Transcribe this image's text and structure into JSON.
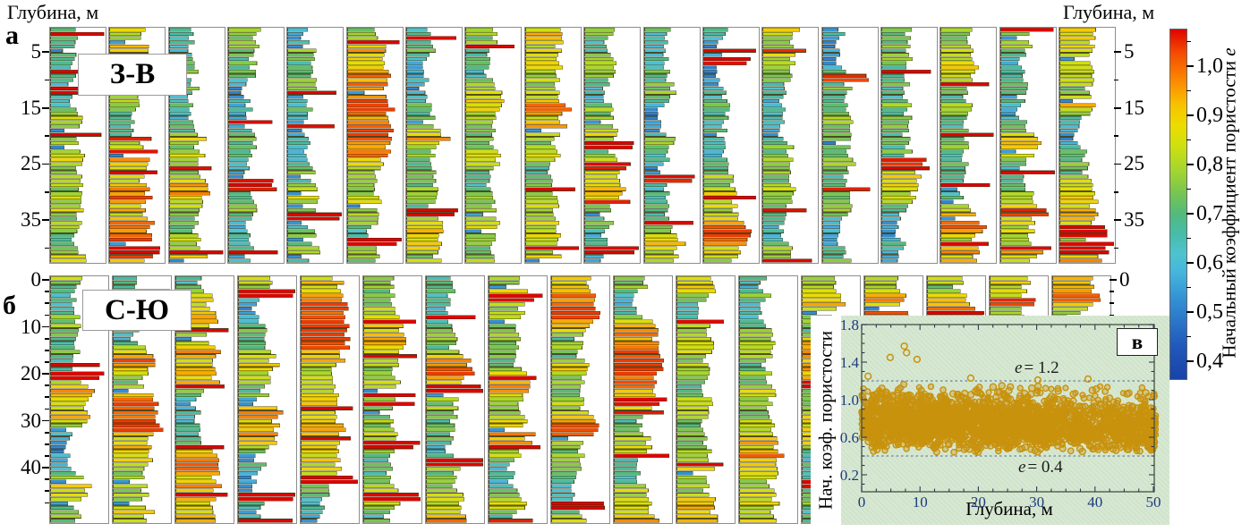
{
  "figure": {
    "depth_axis_title_left": "Глубина, м",
    "depth_axis_title_right": "Глубина, м",
    "label_a": "а",
    "label_b": "б"
  },
  "colorbar": {
    "label": "Начальный коэффициент пористости",
    "label_symbol": "e",
    "tick_labels": [
      "1,0",
      "0,9",
      "0,8",
      "0,7",
      "0,6",
      "0,5",
      "0,4"
    ],
    "tick_values": [
      1.0,
      0.9,
      0.8,
      0.7,
      0.6,
      0.5,
      0.4
    ],
    "minor_tick_values": [
      1.05,
      0.95,
      0.85,
      0.75,
      0.65,
      0.55,
      0.45
    ],
    "domain": [
      0.365,
      1.076
    ],
    "stops": [
      [
        1.076,
        "#df0400"
      ],
      [
        1.03,
        "#f44a00"
      ],
      [
        0.97,
        "#fb8c00"
      ],
      [
        0.92,
        "#f7c400"
      ],
      [
        0.88,
        "#ecdc00"
      ],
      [
        0.84,
        "#cfe00f"
      ],
      [
        0.79,
        "#a4d62e"
      ],
      [
        0.74,
        "#74c455"
      ],
      [
        0.7,
        "#52ba7e"
      ],
      [
        0.66,
        "#47bcaa"
      ],
      [
        0.62,
        "#4fc3cf"
      ],
      [
        0.58,
        "#45b4dd"
      ],
      [
        0.53,
        "#3492d5"
      ],
      [
        0.48,
        "#2b74c8"
      ],
      [
        0.43,
        "#2157ba"
      ],
      [
        0.365,
        "#1843a8"
      ]
    ]
  },
  "chart_data": [
    {
      "type": "bar",
      "id": "row-a",
      "title": "З-В",
      "panel_label": "а",
      "orientation": "horizontal",
      "n_panels": 18,
      "bars_per_panel": 56,
      "depth_axis": {
        "tick_labels": [
          "5",
          "15",
          "25",
          "35"
        ],
        "tick_values": [
          5,
          15,
          25,
          35
        ],
        "minor_tick_values": [
          10,
          20,
          30,
          40
        ],
        "range": [
          0.5,
          42.5
        ]
      },
      "value_range": [
        0.45,
        1.2
      ],
      "encoding": "bar length and color both encode initial porosity coefficient e",
      "seed": 7
    },
    {
      "type": "bar",
      "id": "row-b",
      "title": "С-Ю",
      "panel_label": "б",
      "orientation": "horizontal",
      "n_panels": 17,
      "bars_per_panel": 57,
      "depth_axis": {
        "tick_labels": [
          "0",
          "10",
          "20",
          "30",
          "40"
        ],
        "tick_values": [
          0,
          10,
          20,
          30,
          40
        ],
        "minor_step": 2.5,
        "range": [
          0,
          51.5
        ]
      },
      "right_axis_visible_tick": "0",
      "value_range": [
        0.45,
        1.2
      ],
      "encoding": "bar length and color both encode initial porosity coefficient e",
      "seed": 13
    },
    {
      "type": "scatter",
      "id": "inset-v",
      "panel_label": "в",
      "xlabel": "Глубина, м",
      "ylabel": "Нач. коэф. пористости",
      "xlim": [
        0,
        50
      ],
      "ylim": [
        0,
        1.8
      ],
      "xtick_labels": [
        "0",
        "10",
        "20",
        "30",
        "40",
        "50"
      ],
      "xtick_values": [
        0,
        10,
        20,
        30,
        40,
        50
      ],
      "x_minor_step": 2.5,
      "ytick_labels": [
        "0.2",
        "0.6",
        "1.0",
        "1.4",
        "1.8"
      ],
      "ytick_values": [
        0.2,
        0.6,
        1.0,
        1.4,
        1.8
      ],
      "y_minor_step": 0.1,
      "ref_lines": [
        {
          "value": 1.2,
          "symbol": "e",
          "text": "= 1.2"
        },
        {
          "value": 0.4,
          "symbol": "e",
          "text": "= 0.4"
        }
      ],
      "marker": "open-circle",
      "marker_color": "#c8920d",
      "n_points": 2600,
      "dense_band_y": [
        0.45,
        1.15
      ],
      "outliers": [
        [
          4.9,
          1.45
        ],
        [
          7.3,
          1.57
        ],
        [
          7.7,
          1.5
        ],
        [
          9.5,
          1.43
        ],
        [
          1.1,
          1.25
        ],
        [
          18.7,
          1.23
        ],
        [
          30.2,
          1.21
        ],
        [
          38.8,
          1.22
        ]
      ],
      "background": "#d7e8d2",
      "seed": 42
    }
  ]
}
